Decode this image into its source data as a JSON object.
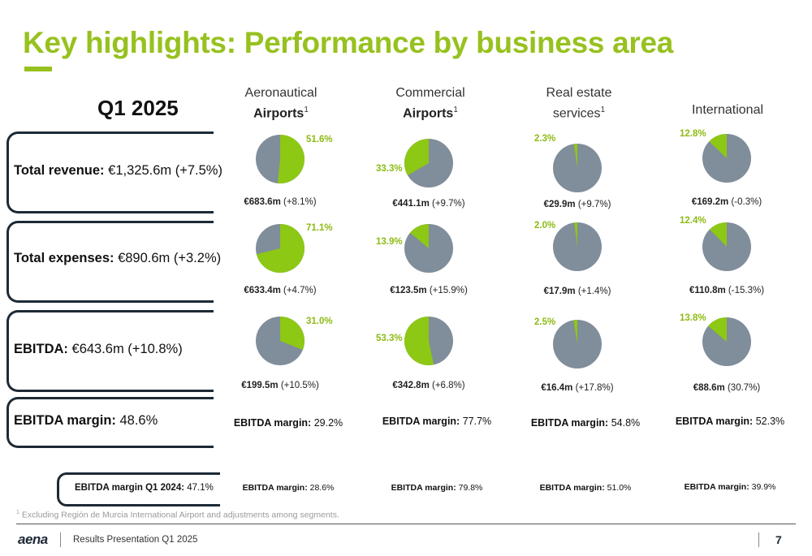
{
  "title": "Key highlights: Performance by business area",
  "period": "Q1 2025",
  "colors": {
    "accent": "#97c11f",
    "pie_green": "#8dc814",
    "pie_grey": "#808d9b",
    "dark": "#1d2a36"
  },
  "columns": [
    {
      "line1": "Aeronautical",
      "line2": "Airports",
      "sup": "1"
    },
    {
      "line1": "Commercial",
      "line2": "Airports",
      "sup": "1"
    },
    {
      "line1": "Real estate",
      "line2": "services",
      "sup": "1"
    },
    {
      "line1": "International",
      "line2": "",
      "sup": ""
    }
  ],
  "rows": [
    {
      "label": "Total revenue:",
      "value": "€1,325.6m (+7.5%)"
    },
    {
      "label": "Total expenses:",
      "value": "€890.6m (+3.2%)"
    },
    {
      "label": "EBITDA:",
      "value": "€643.6m (+10.8%)"
    },
    {
      "label": "EBITDA margin:",
      "value": "48.6%"
    }
  ],
  "cells": [
    [
      {
        "pct": "51.6%",
        "share": 51.6,
        "amount": "€683.6m",
        "change": "(+8.1%)"
      },
      {
        "pct": "33.3%",
        "share": 33.3,
        "amount": "€441.1m",
        "change": "(+9.7%)"
      },
      {
        "pct": "2.3%",
        "share": 2.3,
        "amount": "€29.9m",
        "change": "(+9.7%)"
      },
      {
        "pct": "12.8%",
        "share": 12.8,
        "amount": "€169.2m",
        "change": "(-0.3%)"
      }
    ],
    [
      {
        "pct": "71.1%",
        "share": 71.1,
        "amount": "€633.4m",
        "change": "(+4.7%)"
      },
      {
        "pct": "13.9%",
        "share": 13.9,
        "amount": "€123.5m",
        "change": "(+15.9%)"
      },
      {
        "pct": "2.0%",
        "share": 2.0,
        "amount": "€17.9m",
        "change": "(+1.4%)"
      },
      {
        "pct": "12.4%",
        "share": 12.4,
        "amount": "€110.8m",
        "change": "(-15.3%)"
      }
    ],
    [
      {
        "pct": "31.0%",
        "share": 31.0,
        "amount": "€199.5m",
        "change": "(+10.5%)"
      },
      {
        "pct": "53.3%",
        "share": 53.3,
        "amount": "€342.8m",
        "change": "(+6.8%)"
      },
      {
        "pct": "2.5%",
        "share": 2.5,
        "amount": "€16.4m",
        "change": "(+17.8%)"
      },
      {
        "pct": "13.8%",
        "share": 13.8,
        "amount": "€88.6m",
        "change": "(30.7%)"
      }
    ]
  ],
  "margin_label": "EBITDA margin:",
  "margins": [
    "29.2%",
    "77.7%",
    "54.8%",
    "52.3%"
  ],
  "prev_label": "EBITDA margin Q1 2024:",
  "prev_value": "47.1%",
  "prev_margins": [
    "28.6%",
    "79.8%",
    "51.0%",
    "39.9%"
  ],
  "footnote_sup": "1",
  "footnote": "Excluding Región de Murcia International Airport and adjustments among segments.",
  "footer": {
    "logo": "aena",
    "text": "Results Presentation Q1 2025",
    "page": "7"
  }
}
